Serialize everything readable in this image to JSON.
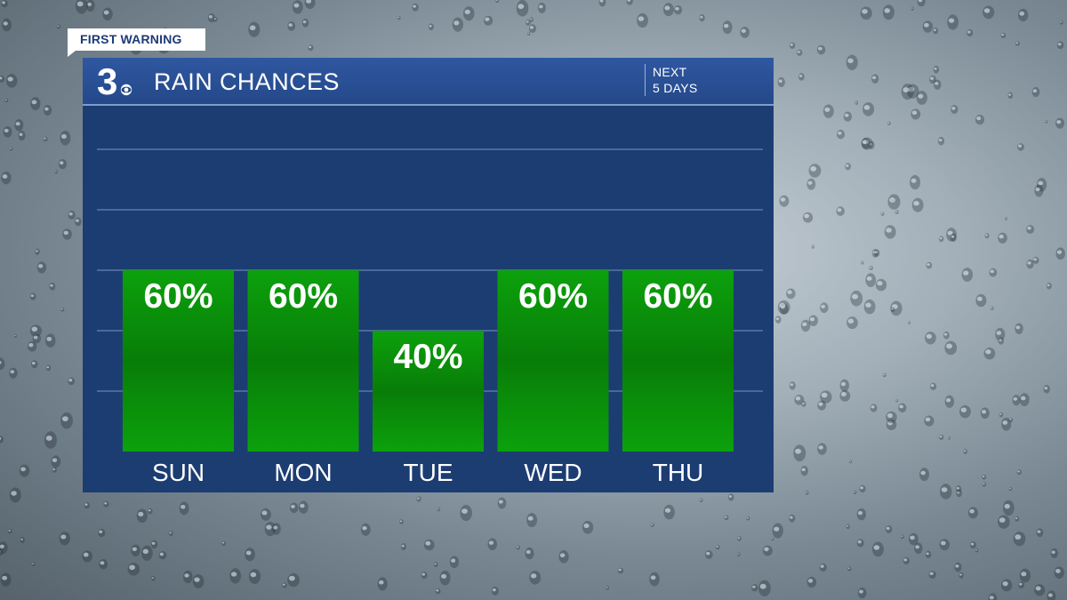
{
  "tag": "FIRST WARNING",
  "logo_text": "3",
  "header": {
    "title": "RAIN CHANCES",
    "period_line1": "NEXT",
    "period_line2": "5 DAYS"
  },
  "colors": {
    "panel": "#1c3d72",
    "header": "#2a509a",
    "bar": "#0ca10c",
    "bar_mid": "#087d08",
    "gridline": "#5a77a6",
    "text": "#ffffff"
  },
  "chart_data": {
    "type": "bar",
    "title": "RAIN CHANCES",
    "categories": [
      "SUN",
      "MON",
      "TUE",
      "WED",
      "THU"
    ],
    "values": [
      60,
      60,
      40,
      60,
      60
    ],
    "labels": [
      "60%",
      "60%",
      "40%",
      "60%",
      "60%"
    ],
    "unit": "%",
    "ylim": [
      0,
      100
    ],
    "grid": true,
    "gridlines": [
      20,
      40,
      60,
      80,
      100
    ]
  }
}
